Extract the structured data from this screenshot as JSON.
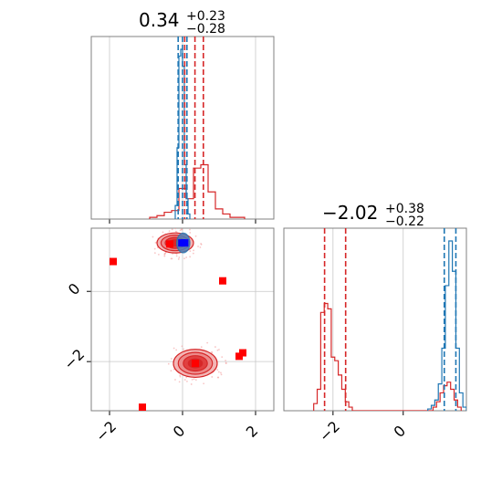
{
  "colors": {
    "red": "#d62728",
    "blue": "#1f77b4",
    "marker": "#ff0000",
    "box": "#0000ff"
  },
  "chart_data": [
    {
      "type": "histogram",
      "panel": "top-left",
      "title": {
        "median": "0.34",
        "plus": "+0.23",
        "minus": "−0.28"
      },
      "xlim": [
        -2.5,
        2.5
      ],
      "xticks": [
        -2,
        0,
        2
      ],
      "grid": true,
      "red_lines": [
        0.06,
        0.34,
        0.57
      ],
      "blue_lines": [
        -0.12,
        0.0,
        0.12
      ],
      "series": [
        {
          "color": "red",
          "bins": [
            -0.9,
            -0.7,
            -0.5,
            -0.3,
            -0.1,
            0.1,
            0.3,
            0.5,
            0.7,
            0.9,
            1.1,
            1.3,
            1.5,
            1.7
          ],
          "values": [
            0.01,
            0.02,
            0.04,
            0.05,
            0.18,
            0.12,
            0.3,
            0.32,
            0.16,
            0.06,
            0.03,
            0.01,
            0.01
          ]
        },
        {
          "color": "blue",
          "bins": [
            -0.2,
            -0.15,
            -0.1,
            -0.05,
            0.0,
            0.05,
            0.1,
            0.15,
            0.2
          ],
          "values": [
            0.08,
            0.42,
            0.96,
            1.0,
            0.9,
            0.32,
            0.12,
            0.03
          ]
        }
      ]
    },
    {
      "type": "scatter-contour",
      "panel": "bottom-left",
      "xlim": [
        -2.5,
        2.5
      ],
      "ylim": [
        -3.4,
        1.8
      ],
      "xticks": [
        -2,
        0,
        2
      ],
      "yticks": [
        -2,
        0
      ],
      "grid": true,
      "red_modes": [
        {
          "x": 0.35,
          "y": -2.05
        },
        {
          "x": -0.2,
          "y": 1.38
        }
      ],
      "blue_mode": {
        "x": 0.02,
        "y": 1.38
      },
      "markers": [
        {
          "x": -1.9,
          "y": 0.85
        },
        {
          "x": -0.35,
          "y": 1.35
        },
        {
          "x": 1.1,
          "y": 0.3
        },
        {
          "x": 0.35,
          "y": -2.05
        },
        {
          "x": 1.65,
          "y": -1.75
        },
        {
          "x": 1.55,
          "y": -1.85
        },
        {
          "x": -1.1,
          "y": -3.3
        }
      ],
      "box_markers": [
        {
          "x": -0.02,
          "y": 1.38
        },
        {
          "x": 0.06,
          "y": 1.38
        }
      ]
    },
    {
      "type": "histogram",
      "panel": "bottom-right",
      "title": {
        "median": "−2.02",
        "plus": "+0.38",
        "minus": "−0.22"
      },
      "xlim": [
        -3.4,
        1.8
      ],
      "xticks": [
        -2,
        0
      ],
      "grid": true,
      "red_lines": [
        -2.24,
        -1.64
      ],
      "blue_lines": [
        1.17,
        1.5
      ],
      "series": [
        {
          "color": "red",
          "bins": [
            -2.55,
            -2.45,
            -2.35,
            -2.25,
            -2.15,
            -2.05,
            -1.95,
            -1.85,
            -1.75,
            -1.65,
            -1.55,
            -1.45,
            0.85,
            0.95,
            1.05,
            1.15,
            1.25,
            1.35,
            1.45,
            1.55,
            1.65
          ],
          "values": [
            0.04,
            0.12,
            0.55,
            0.6,
            0.57,
            0.3,
            0.28,
            0.2,
            0.12,
            0.05,
            0.02,
            0.0,
            0.02,
            0.05,
            0.1,
            0.14,
            0.16,
            0.12,
            0.06,
            0.02
          ]
        },
        {
          "color": "blue",
          "bins": [
            0.7,
            0.8,
            0.9,
            1.0,
            1.1,
            1.2,
            1.3,
            1.4,
            1.5,
            1.6,
            1.7,
            1.8
          ],
          "values": [
            0.01,
            0.03,
            0.06,
            0.15,
            0.35,
            0.7,
            0.95,
            0.78,
            0.35,
            0.1,
            0.02
          ]
        }
      ]
    }
  ]
}
